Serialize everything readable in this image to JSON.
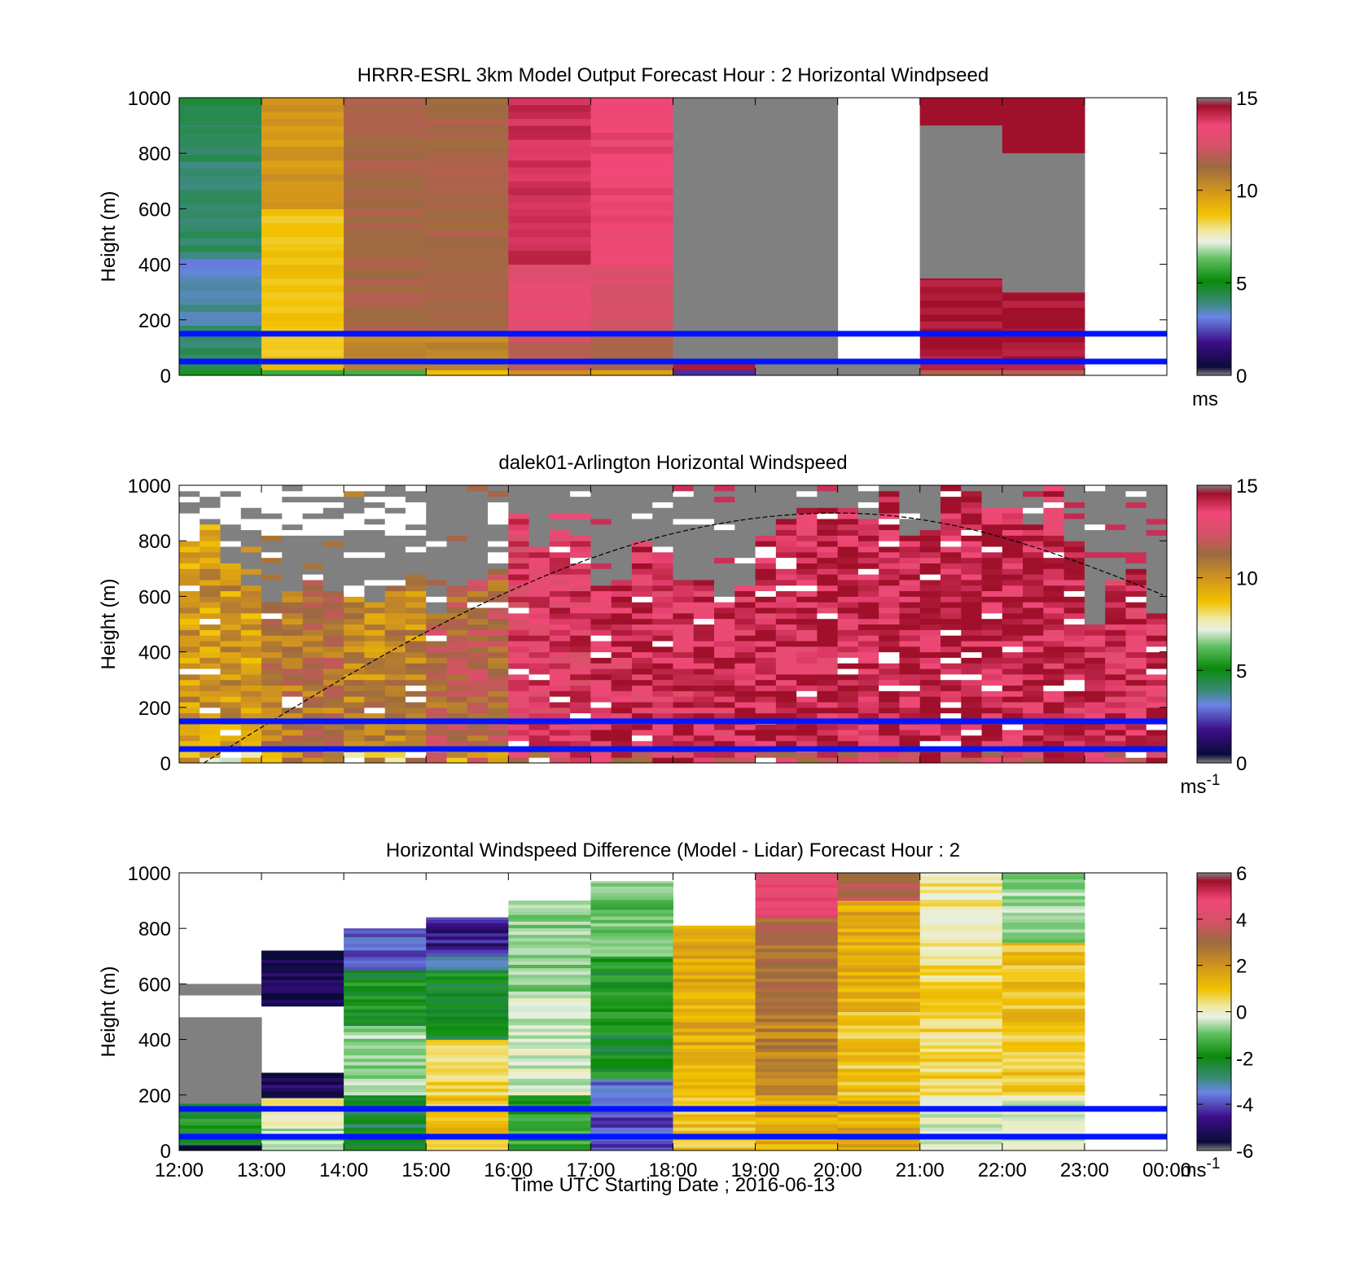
{
  "figure": {
    "xaxis": {
      "ticks": [
        "12:00",
        "13:00",
        "14:00",
        "15:00",
        "16:00",
        "17:00",
        "18:00",
        "19:00",
        "20:00",
        "21:00",
        "22:00",
        "23:00",
        "00:00"
      ],
      "label": "Time UTC  Starting Date ; 2016-06-13"
    }
  },
  "chart_data": [
    {
      "type": "heatmap",
      "title": "HRRR-ESRL 3km Model Output   Forecast Hour : 2 Horizontal Windpseed",
      "ylabel": "Height (m)",
      "ylim": [
        0,
        1000
      ],
      "yticks": [
        "0",
        "200",
        "400",
        "600",
        "800",
        "1000"
      ],
      "colorbar": {
        "ticks": [
          "0",
          "5",
          "10",
          "15"
        ],
        "range": [
          0,
          15
        ],
        "unit": "ms",
        "unit_sup": ""
      },
      "reference_lines_m": [
        50,
        150
      ],
      "columns": [
        {
          "hour": 12,
          "bands": [
            [
              0,
              20,
              5
            ],
            [
              20,
              50,
              4
            ],
            [
              50,
              150,
              4
            ],
            [
              150,
              180,
              4
            ],
            [
              180,
              360,
              3.5
            ],
            [
              360,
              420,
              3
            ],
            [
              420,
              900,
              4
            ],
            [
              900,
              1000,
              4.3
            ]
          ]
        },
        {
          "hour": 13,
          "bands": [
            [
              0,
              20,
              6
            ],
            [
              20,
              150,
              9
            ],
            [
              150,
              600,
              9
            ],
            [
              600,
              1000,
              10
            ]
          ]
        },
        {
          "hour": 14,
          "bands": [
            [
              0,
              20,
              6
            ],
            [
              20,
              150,
              10.5
            ],
            [
              150,
              400,
              11.5
            ],
            [
              400,
              1000,
              11.5
            ]
          ]
        },
        {
          "hour": 15,
          "bands": [
            [
              0,
              20,
              9
            ],
            [
              20,
              150,
              10.5
            ],
            [
              150,
              400,
              11.5
            ],
            [
              400,
              1000,
              11.5
            ]
          ]
        },
        {
          "hour": 16,
          "bands": [
            [
              0,
              20,
              10
            ],
            [
              20,
              150,
              12
            ],
            [
              150,
              400,
              13
            ],
            [
              400,
              1000,
              14
            ]
          ]
        },
        {
          "hour": 17,
          "bands": [
            [
              0,
              20,
              10
            ],
            [
              20,
              150,
              11.5
            ],
            [
              150,
              400,
              12.5
            ],
            [
              400,
              1000,
              13.5
            ]
          ]
        },
        {
          "hour": 18,
          "bands": [
            [
              0,
              20,
              2
            ],
            [
              20,
              150,
              14.5
            ]
          ]
        },
        {
          "hour": 19,
          "bands": [
            [
              0,
              50,
              14
            ]
          ]
        },
        {
          "hour": 20,
          "bands": [
            [
              0,
              50,
              14
            ]
          ]
        },
        {
          "hour": 21,
          "bands": [
            [
              0,
              20,
              12
            ],
            [
              20,
              350,
              14.5
            ],
            [
              900,
              1000,
              14.8
            ]
          ]
        },
        {
          "hour": 22,
          "bands": [
            [
              0,
              20,
              12
            ],
            [
              20,
              300,
              14.5
            ],
            [
              800,
              1000,
              14.8
            ]
          ]
        }
      ]
    },
    {
      "type": "heatmap",
      "title": "dalek01-Arlington  Horizontal Windspeed",
      "ylabel": "Height (m)",
      "ylim": [
        0,
        1000
      ],
      "yticks": [
        "0",
        "200",
        "400",
        "600",
        "800",
        "1000"
      ],
      "colorbar": {
        "ticks": [
          "0",
          "5",
          "10",
          "15"
        ],
        "range": [
          0,
          15
        ],
        "unit": "ms",
        "unit_sup": "-1"
      },
      "reference_lines_m": [
        50,
        150
      ],
      "dashed_curve": {
        "peak_height_m": 900,
        "peak_time_h": 20,
        "start_time_h": 12.3,
        "end_height_m": 600
      },
      "value_profile": [
        {
          "hour": 12,
          "max_m": 850,
          "mean": 10
        },
        {
          "hour": 13,
          "max_m": 740,
          "mean": 11
        },
        {
          "hour": 14,
          "max_m": 700,
          "mean": 10.5
        },
        {
          "hour": 15,
          "max_m": 700,
          "mean": 11.5
        },
        {
          "hour": 16,
          "max_m": 950,
          "mean": 13.5
        },
        {
          "hour": 17,
          "max_m": 820,
          "mean": 14
        },
        {
          "hour": 18,
          "max_m": 720,
          "mean": 14
        },
        {
          "hour": 19,
          "max_m": 1000,
          "mean": 14
        },
        {
          "hour": 20,
          "max_m": 1000,
          "mean": 14.2
        },
        {
          "hour": 21,
          "max_m": 1000,
          "mean": 14.3
        },
        {
          "hour": 22,
          "max_m": 1000,
          "mean": 14.1
        },
        {
          "hour": 23,
          "max_m": 700,
          "mean": 14
        }
      ]
    },
    {
      "type": "heatmap",
      "title": "Horizontal Windspeed Difference (Model - Lidar) Forecast Hour : 2",
      "ylabel": "Height (m)",
      "ylim": [
        0,
        1000
      ],
      "yticks": [
        "0",
        "200",
        "400",
        "600",
        "800",
        "1000"
      ],
      "colorbar": {
        "ticks": [
          "-6",
          "-4",
          "-2",
          "0",
          "2",
          "4",
          "6"
        ],
        "range": [
          -6,
          6
        ],
        "unit": "ms",
        "unit_sup": "-1"
      },
      "reference_lines_m": [
        50,
        150
      ],
      "columns": [
        {
          "hour": 12,
          "bands": [
            [
              0,
              20,
              -6.5
            ],
            [
              20,
              170,
              -2.5
            ],
            [
              170,
              480,
              -99
            ],
            [
              560,
              600,
              -99
            ]
          ]
        },
        {
          "hour": 13,
          "bands": [
            [
              0,
              80,
              -1
            ],
            [
              80,
              190,
              0
            ],
            [
              190,
              250,
              -5.5
            ],
            [
              250,
              280,
              -5.8
            ],
            [
              520,
              720,
              -5.8
            ]
          ]
        },
        {
          "hour": 14,
          "bands": [
            [
              0,
              200,
              -2.8
            ],
            [
              200,
              450,
              -1
            ],
            [
              450,
              650,
              -2.5
            ],
            [
              650,
              800,
              -4.2
            ]
          ]
        },
        {
          "hour": 15,
          "bands": [
            [
              0,
              200,
              1
            ],
            [
              200,
              400,
              0.5
            ],
            [
              400,
              650,
              -2.5
            ],
            [
              650,
              700,
              -3.5
            ],
            [
              700,
              840,
              -5
            ]
          ]
        },
        {
          "hour": 16,
          "bands": [
            [
              0,
              200,
              -2
            ],
            [
              200,
              550,
              -0.5
            ],
            [
              550,
              900,
              -1.2
            ]
          ]
        },
        {
          "hour": 17,
          "bands": [
            [
              0,
              200,
              -4.5
            ],
            [
              200,
              260,
              -4
            ],
            [
              260,
              700,
              -2.5
            ],
            [
              700,
              970,
              -1.5
            ]
          ]
        },
        {
          "hour": 18,
          "bands": [
            [
              0,
              200,
              1
            ],
            [
              200,
              810,
              1.5
            ]
          ]
        },
        {
          "hour": 19,
          "bands": [
            [
              0,
              200,
              1.5
            ],
            [
              200,
              500,
              2.5
            ],
            [
              500,
              840,
              3
            ],
            [
              840,
              1000,
              4.8
            ]
          ]
        },
        {
          "hour": 20,
          "bands": [
            [
              0,
              200,
              1.5
            ],
            [
              200,
              500,
              1
            ],
            [
              500,
              900,
              1.5
            ],
            [
              900,
              1000,
              3.5
            ]
          ]
        },
        {
          "hour": 21,
          "bands": [
            [
              0,
              200,
              -0.5
            ],
            [
              200,
              700,
              0.6
            ],
            [
              700,
              1000,
              0.2
            ]
          ]
        },
        {
          "hour": 22,
          "bands": [
            [
              0,
              200,
              -0.5
            ],
            [
              200,
              750,
              1
            ],
            [
              750,
              1000,
              -1
            ]
          ]
        }
      ]
    }
  ]
}
